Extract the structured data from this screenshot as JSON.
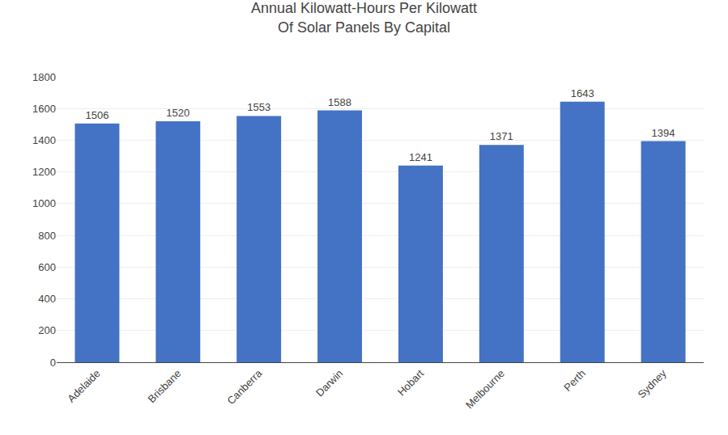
{
  "chart_data": {
    "type": "bar",
    "title": "Annual Kilowatt-Hours Per Kilowatt\nOf Solar Panels By Capital",
    "categories": [
      "Adelaide",
      "Brisbane",
      "Canberra",
      "Darwin",
      "Hobart",
      "Melbourne",
      "Perth",
      "Sydney"
    ],
    "values": [
      1506,
      1520,
      1553,
      1588,
      1241,
      1371,
      1643,
      1394
    ],
    "color": "#4472C4",
    "ylim": [
      0,
      1800
    ],
    "yticks": [
      0,
      200,
      400,
      600,
      800,
      1000,
      1200,
      1400,
      1600,
      1800
    ],
    "grid": true,
    "data_labels": true
  }
}
